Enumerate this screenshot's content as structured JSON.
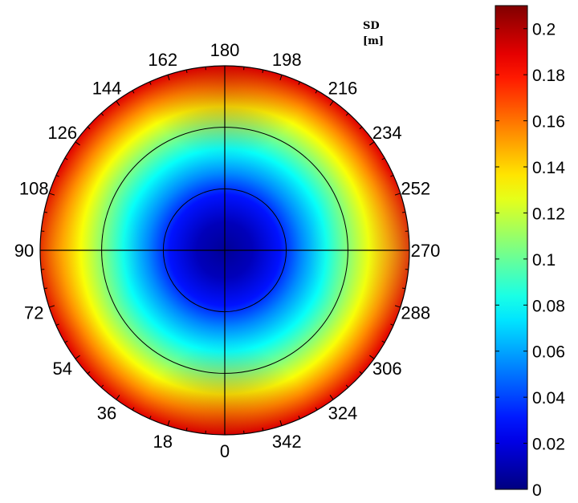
{
  "chart_data": {
    "type": "heatmap",
    "subtype": "polar",
    "colorbar_label_line1": "SD",
    "colorbar_label_line2": "[m]",
    "colormap": "jet",
    "color_range": [
      0,
      0.21
    ],
    "colorbar_ticks": [
      "0",
      "0.02",
      "0.04",
      "0.06",
      "0.08",
      "0.1",
      "0.12",
      "0.14",
      "0.16",
      "0.18",
      "0.2"
    ],
    "colorbar_tick_values": [
      0,
      0.02,
      0.04,
      0.06,
      0.08,
      0.1,
      0.12,
      0.14,
      0.16,
      0.18,
      0.2
    ],
    "angle_ticks": [
      {
        "value": 0,
        "label": "0"
      },
      {
        "value": 18,
        "label": "18"
      },
      {
        "value": 36,
        "label": "36"
      },
      {
        "value": 54,
        "label": "54"
      },
      {
        "value": 72,
        "label": "72"
      },
      {
        "value": 90,
        "label": "90"
      },
      {
        "value": 108,
        "label": "108"
      },
      {
        "value": 126,
        "label": "126"
      },
      {
        "value": 144,
        "label": "144"
      },
      {
        "value": 162,
        "label": "162"
      },
      {
        "value": 180,
        "label": "180"
      },
      {
        "value": 198,
        "label": "198"
      },
      {
        "value": 216,
        "label": "216"
      },
      {
        "value": 234,
        "label": "234"
      },
      {
        "value": 252,
        "label": "252"
      },
      {
        "value": 270,
        "label": "270"
      },
      {
        "value": 288,
        "label": "288"
      },
      {
        "value": 306,
        "label": "306"
      },
      {
        "value": 324,
        "label": "324"
      },
      {
        "value": 342,
        "label": "342"
      }
    ],
    "angle_direction": "counterclockwise",
    "zero_angle_position": "bottom",
    "radial_rings_fraction": [
      0.333,
      0.667,
      1.0
    ],
    "radial_profile": [
      {
        "r": 0.0,
        "value": 0.005
      },
      {
        "r": 0.15,
        "value": 0.012
      },
      {
        "r": 0.3,
        "value": 0.03
      },
      {
        "r": 0.42,
        "value": 0.055
      },
      {
        "r": 0.55,
        "value": 0.08
      },
      {
        "r": 0.67,
        "value": 0.105
      },
      {
        "r": 0.78,
        "value": 0.13
      },
      {
        "r": 0.88,
        "value": 0.155
      },
      {
        "r": 1.0,
        "value": 0.19
      }
    ]
  },
  "colors": {
    "outline": "#000000"
  }
}
